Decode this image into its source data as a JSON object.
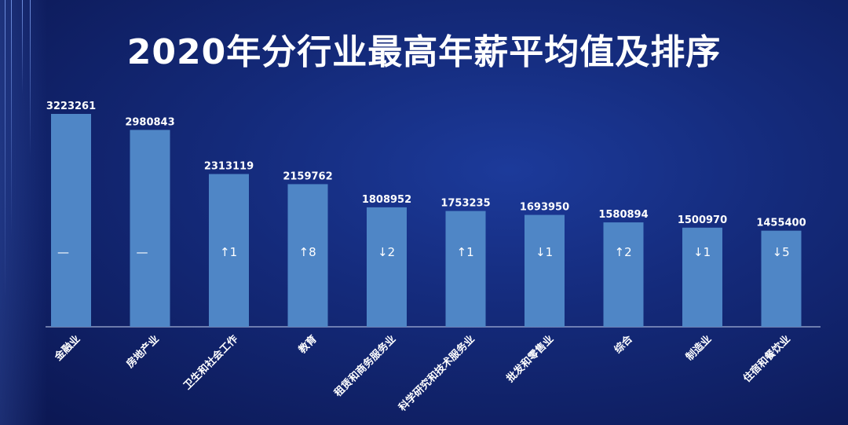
{
  "title": "2020年分行业最高年薪平均值及排序",
  "colors": {
    "bar": "#4f86c6",
    "text": "#ffffff",
    "axis": "#c8d4f0"
  },
  "chart_data": {
    "type": "bar",
    "title": "2020年分行业最高年薪平均值及排序",
    "xlabel": "",
    "ylabel": "",
    "categories": [
      "金融业",
      "房地产业",
      "卫生和社会工作",
      "教育",
      "租赁和商务服务业",
      "科学研究和技术服务业",
      "批发和零售业",
      "综合",
      "制造业",
      "住宿和餐饮业"
    ],
    "values": [
      3223261,
      2980843,
      2313119,
      2159762,
      1808952,
      1753235,
      1693950,
      1580894,
      1500970,
      1455400
    ],
    "rank_change_labels": [
      "—",
      "—",
      "↑1",
      "↑8",
      "↓2",
      "↑1",
      "↓1",
      "↑2",
      "↓1",
      "↓5"
    ],
    "ylim": [
      0,
      3223261
    ],
    "grid": false,
    "legend": "none"
  }
}
